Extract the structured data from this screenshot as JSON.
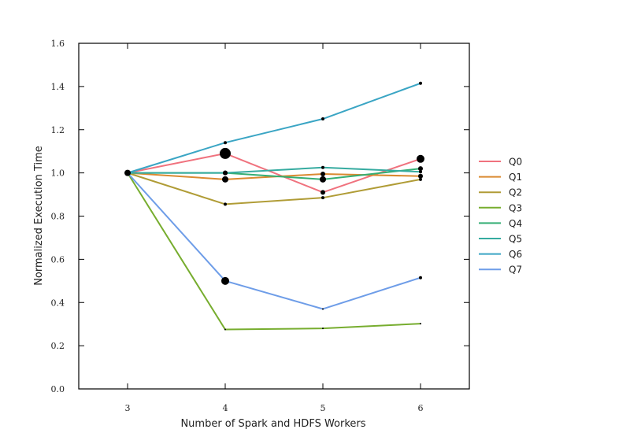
{
  "chart_data": {
    "type": "line",
    "title": "",
    "xlabel": "Number of Spark and HDFS Workers",
    "ylabel": "Normalized Execution Time",
    "xlim": [
      2.5,
      6.5
    ],
    "ylim": [
      0.0,
      1.6
    ],
    "xticks": [
      3,
      4,
      5,
      6
    ],
    "xtick_labels": [
      "3",
      "4",
      "5",
      "6"
    ],
    "yticks": [
      0.0,
      0.2,
      0.4,
      0.6,
      0.8,
      1.0,
      1.2,
      1.4,
      1.6
    ],
    "ytick_labels": [
      "0.0",
      "0.2",
      "0.4",
      "0.6",
      "0.8",
      "1.0",
      "1.2",
      "1.4",
      "1.6"
    ],
    "grid": false,
    "legend_position": "right",
    "x": [
      3,
      4,
      5,
      6
    ],
    "series": [
      {
        "name": "Q0",
        "color": "#f0727e",
        "values": [
          1.0,
          1.09,
          0.91,
          1.065
        ],
        "error_size": [
          4,
          7,
          3,
          5
        ]
      },
      {
        "name": "Q1",
        "color": "#da8a31",
        "values": [
          1.0,
          0.97,
          0.995,
          0.985
        ],
        "error_size": [
          3,
          4,
          3,
          3
        ]
      },
      {
        "name": "Q2",
        "color": "#b09c36",
        "values": [
          1.0,
          0.855,
          0.885,
          0.97
        ],
        "error_size": [
          3,
          2,
          2,
          2
        ]
      },
      {
        "name": "Q3",
        "color": "#77ad2f",
        "values": [
          1.0,
          0.275,
          0.28,
          0.302
        ],
        "error_size": [
          2,
          1,
          1,
          1
        ]
      },
      {
        "name": "Q4",
        "color": "#35ae74",
        "values": [
          1.0,
          1.0,
          0.97,
          1.02
        ],
        "error_size": [
          3,
          3,
          4,
          3
        ]
      },
      {
        "name": "Q5",
        "color": "#36aba0",
        "values": [
          1.0,
          1.0,
          1.025,
          1.005
        ],
        "error_size": [
          3,
          3,
          2,
          2
        ]
      },
      {
        "name": "Q6",
        "color": "#3aa5c4",
        "values": [
          1.0,
          1.14,
          1.25,
          1.415
        ],
        "error_size": [
          3,
          2,
          2,
          2
        ]
      },
      {
        "name": "Q7",
        "color": "#6e9de8",
        "values": [
          1.0,
          0.5,
          0.37,
          0.515
        ],
        "error_size": [
          3,
          5,
          1,
          2
        ]
      }
    ]
  }
}
